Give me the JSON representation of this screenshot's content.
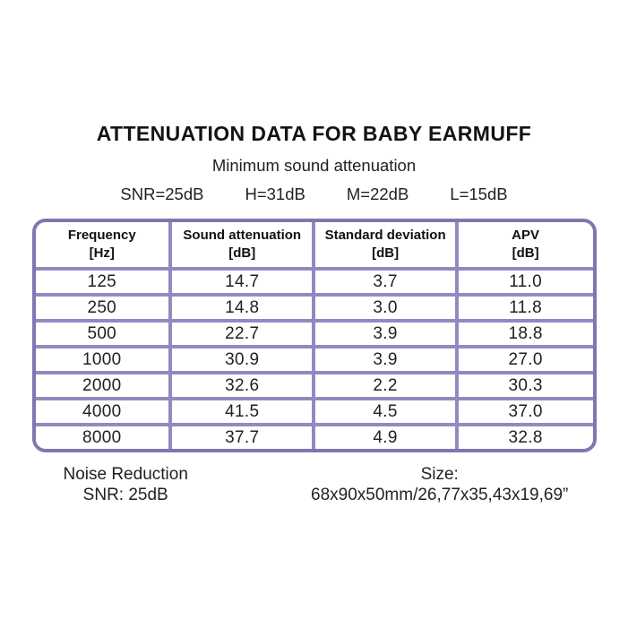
{
  "title": "ATTENUATION DATA FOR BABY EARMUFF",
  "subtitle": "Minimum sound attenuation",
  "snr_summary": {
    "snr": "SNR=25dB",
    "high": "H=31dB",
    "medium": "M=22dB",
    "low": "L=15dB"
  },
  "table": {
    "columns": [
      {
        "label": "Frequency",
        "unit": "[Hz]"
      },
      {
        "label": "Sound attenuation",
        "unit": "[dB]"
      },
      {
        "label": "Standard deviation",
        "unit": "[dB]"
      },
      {
        "label": "APV",
        "unit": "[dB]"
      }
    ],
    "rows": [
      [
        "125",
        "14.7",
        "3.7",
        "11.0"
      ],
      [
        "250",
        "14.8",
        "3.0",
        "11.8"
      ],
      [
        "500",
        "22.7",
        "3.9",
        "18.8"
      ],
      [
        "1000",
        "30.9",
        "3.9",
        "27.0"
      ],
      [
        "2000",
        "32.6",
        "2.2",
        "30.3"
      ],
      [
        "4000",
        "41.5",
        "4.5",
        "37.0"
      ],
      [
        "8000",
        "37.7",
        "4.9",
        "32.8"
      ]
    ]
  },
  "footer": {
    "noise_reduction_label": "Noise Reduction",
    "noise_reduction_value": "SNR: 25dB",
    "size_label": "Size:",
    "size_value": "68x90x50mm/26,77x35,43x19,69”"
  },
  "colors": {
    "table_outer_border": "#8176b2",
    "table_grid": "#9289c1",
    "text": "#221f20"
  }
}
